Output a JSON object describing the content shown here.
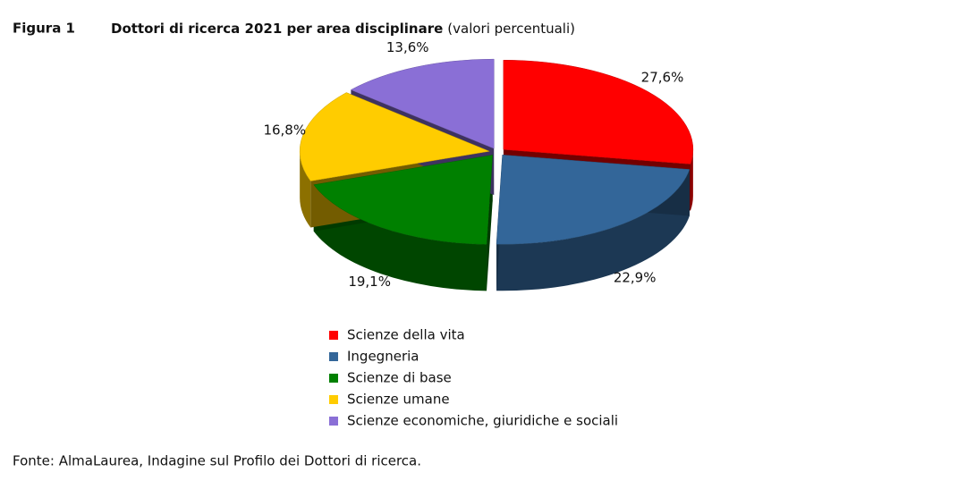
{
  "chart_data": {
    "type": "pie",
    "figure_label": "Figura 1",
    "title": "Dottori di ricerca 2021 per area disciplinare",
    "subtitle": "(valori percentuali)",
    "categories": [
      "Scienze della vita",
      "Ingegneria",
      "Scienze di base",
      "Scienze umane",
      "Scienze economiche, giuridiche e sociali"
    ],
    "values": [
      27.6,
      22.9,
      19.1,
      16.8,
      13.6
    ],
    "value_labels": [
      "27,6%",
      "22,9%",
      "19,1%",
      "16,8%",
      "13,6%"
    ],
    "colors": [
      "#ff0000",
      "#336699",
      "#008000",
      "#ffcc00",
      "#8a6fd6"
    ],
    "source": "Fonte: AlmaLaurea, Indagine sul Profilo dei Dottori di ricerca."
  }
}
